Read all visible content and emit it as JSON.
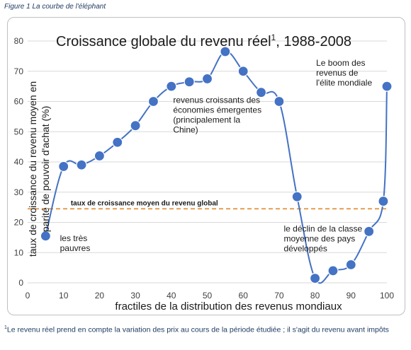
{
  "caption": "Figure 1 La courbe de l'éléphant",
  "footnote": {
    "marker": "1",
    "text": "Le revenu réel prend en compte la variation des prix au cours de la période étudiée ; il s'agit du revenu avant impôts"
  },
  "chart_data": {
    "type": "line",
    "title": "Croissance globale du revenu réel",
    "title_sup": "1",
    "title_suffix": ", 1988-2008",
    "xlabel": "fractiles de la distribution des revenus mondiaux",
    "ylabel_line1": "taux de croissance du revenu moyen en",
    "ylabel_line2": "parité de pouvoir d'achat (%)",
    "xlim": [
      0,
      100
    ],
    "ylim": [
      0,
      80
    ],
    "x_ticks": [
      0,
      10,
      20,
      30,
      40,
      50,
      60,
      70,
      80,
      90,
      100
    ],
    "y_ticks": [
      0,
      10,
      20,
      30,
      40,
      50,
      60,
      70,
      80
    ],
    "series": [
      {
        "x": [
          5,
          10,
          15,
          20,
          25,
          30,
          35,
          40,
          45,
          50,
          55,
          60,
          65,
          70,
          75,
          80,
          85,
          90,
          95,
          99,
          100
        ],
        "y": [
          15.5,
          38.5,
          39,
          42,
          46.5,
          52,
          60,
          65,
          66.5,
          67.5,
          76.5,
          70,
          63,
          60,
          28.5,
          1.5,
          4,
          6,
          17,
          27,
          65
        ],
        "color": "#4472c4"
      }
    ],
    "reference_line": {
      "value": 24.5,
      "label": "taux de croissance moyen du revenu global",
      "color": "#e08a2c"
    },
    "annotations": [
      {
        "lines": [
          "les très",
          "pauvres"
        ]
      },
      {
        "lines": [
          "revenus croissants des",
          "économies émergentes",
          "(principalement la",
          "Chine)"
        ]
      },
      {
        "lines": [
          "Le boom des",
          "revenus de",
          "l'élite mondiale"
        ]
      },
      {
        "lines": [
          "le déclin de la classe",
          "moyenne des pays",
          "développés"
        ]
      }
    ]
  }
}
